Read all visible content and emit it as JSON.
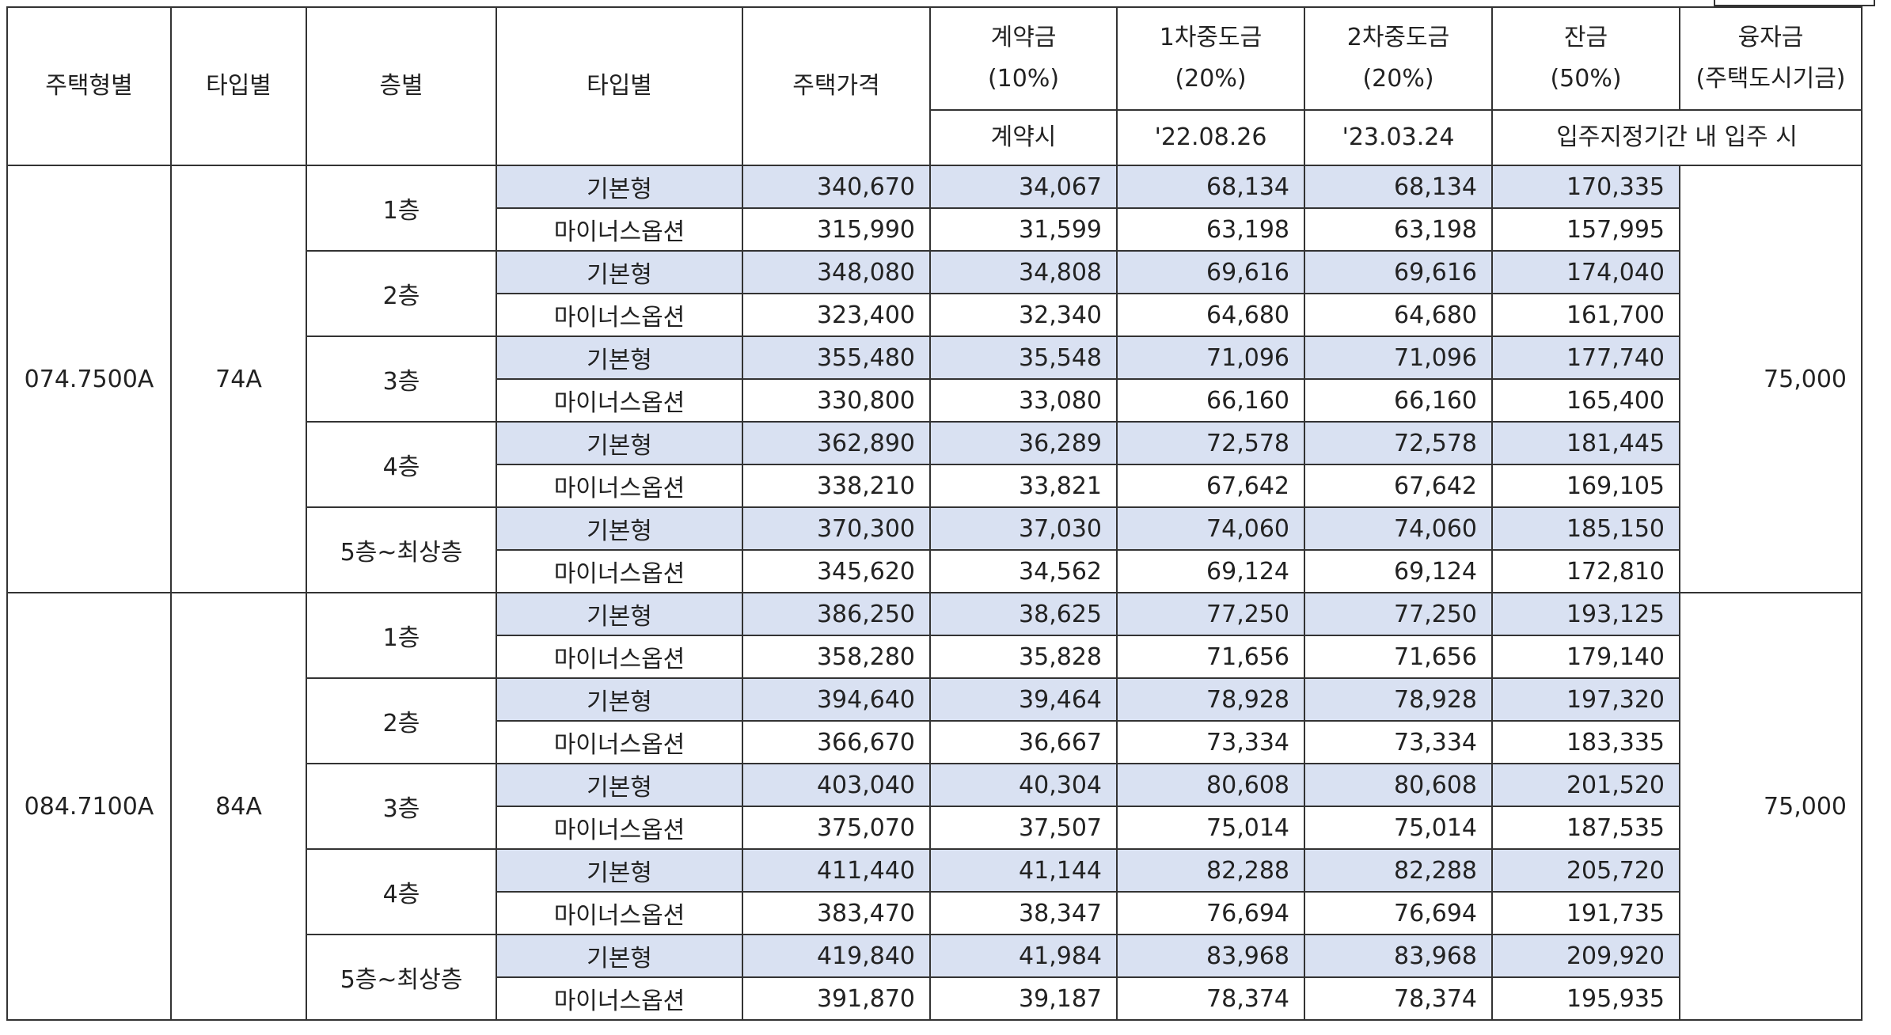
{
  "header": {
    "housing_type": "주택형별",
    "type": "타입별",
    "floor": "층별",
    "type2": "타입별",
    "price": "주택가격",
    "deposit": "계약금",
    "deposit_pct": "(10%)",
    "deposit_when": "계약시",
    "mid1": "1차중도금",
    "mid1_pct": "(20%)",
    "mid1_date": "'22.08.26",
    "mid2": "2차중도금",
    "mid2_pct": "(20%)",
    "mid2_date": "'23.03.24",
    "balance": "잔금",
    "balance_pct": "(50%)",
    "balance_when": "입주지정기간 내 입주 시",
    "loan": "융자금",
    "loan_sub": "(주택도시기금)"
  },
  "groups": [
    {
      "housing_type": "074.7500A",
      "type": "74A",
      "loan": "75,000",
      "floors": [
        {
          "floor": "1층",
          "rows": [
            {
              "option": "기본형",
              "price": "340,670",
              "deposit": "34,067",
              "mid1": "68,134",
              "mid2": "68,134",
              "balance": "170,335"
            },
            {
              "option": "마이너스옵션",
              "price": "315,990",
              "deposit": "31,599",
              "mid1": "63,198",
              "mid2": "63,198",
              "balance": "157,995"
            }
          ]
        },
        {
          "floor": "2층",
          "rows": [
            {
              "option": "기본형",
              "price": "348,080",
              "deposit": "34,808",
              "mid1": "69,616",
              "mid2": "69,616",
              "balance": "174,040"
            },
            {
              "option": "마이너스옵션",
              "price": "323,400",
              "deposit": "32,340",
              "mid1": "64,680",
              "mid2": "64,680",
              "balance": "161,700"
            }
          ]
        },
        {
          "floor": "3층",
          "rows": [
            {
              "option": "기본형",
              "price": "355,480",
              "deposit": "35,548",
              "mid1": "71,096",
              "mid2": "71,096",
              "balance": "177,740"
            },
            {
              "option": "마이너스옵션",
              "price": "330,800",
              "deposit": "33,080",
              "mid1": "66,160",
              "mid2": "66,160",
              "balance": "165,400"
            }
          ]
        },
        {
          "floor": "4층",
          "rows": [
            {
              "option": "기본형",
              "price": "362,890",
              "deposit": "36,289",
              "mid1": "72,578",
              "mid2": "72,578",
              "balance": "181,445"
            },
            {
              "option": "마이너스옵션",
              "price": "338,210",
              "deposit": "33,821",
              "mid1": "67,642",
              "mid2": "67,642",
              "balance": "169,105"
            }
          ]
        },
        {
          "floor": "5층~최상층",
          "rows": [
            {
              "option": "기본형",
              "price": "370,300",
              "deposit": "37,030",
              "mid1": "74,060",
              "mid2": "74,060",
              "balance": "185,150"
            },
            {
              "option": "마이너스옵션",
              "price": "345,620",
              "deposit": "34,562",
              "mid1": "69,124",
              "mid2": "69,124",
              "balance": "172,810"
            }
          ]
        }
      ]
    },
    {
      "housing_type": "084.7100A",
      "type": "84A",
      "loan": "75,000",
      "floors": [
        {
          "floor": "1층",
          "rows": [
            {
              "option": "기본형",
              "price": "386,250",
              "deposit": "38,625",
              "mid1": "77,250",
              "mid2": "77,250",
              "balance": "193,125"
            },
            {
              "option": "마이너스옵션",
              "price": "358,280",
              "deposit": "35,828",
              "mid1": "71,656",
              "mid2": "71,656",
              "balance": "179,140"
            }
          ]
        },
        {
          "floor": "2층",
          "rows": [
            {
              "option": "기본형",
              "price": "394,640",
              "deposit": "39,464",
              "mid1": "78,928",
              "mid2": "78,928",
              "balance": "197,320"
            },
            {
              "option": "마이너스옵션",
              "price": "366,670",
              "deposit": "36,667",
              "mid1": "73,334",
              "mid2": "73,334",
              "balance": "183,335"
            }
          ]
        },
        {
          "floor": "3층",
          "rows": [
            {
              "option": "기본형",
              "price": "403,040",
              "deposit": "40,304",
              "mid1": "80,608",
              "mid2": "80,608",
              "balance": "201,520"
            },
            {
              "option": "마이너스옵션",
              "price": "375,070",
              "deposit": "37,507",
              "mid1": "75,014",
              "mid2": "75,014",
              "balance": "187,535"
            }
          ]
        },
        {
          "floor": "4층",
          "rows": [
            {
              "option": "기본형",
              "price": "411,440",
              "deposit": "41,144",
              "mid1": "82,288",
              "mid2": "82,288",
              "balance": "205,720"
            },
            {
              "option": "마이너스옵션",
              "price": "383,470",
              "deposit": "38,347",
              "mid1": "76,694",
              "mid2": "76,694",
              "balance": "191,735"
            }
          ]
        },
        {
          "floor": "5층~최상층",
          "rows": [
            {
              "option": "기본형",
              "price": "419,840",
              "deposit": "41,984",
              "mid1": "83,968",
              "mid2": "83,968",
              "balance": "209,920"
            },
            {
              "option": "마이너스옵션",
              "price": "391,870",
              "deposit": "39,187",
              "mid1": "78,374",
              "mid2": "78,374",
              "balance": "195,935"
            }
          ]
        }
      ]
    }
  ],
  "colors": {
    "shade": "#d9e1f2",
    "border": "#333333",
    "text": "#222222"
  }
}
